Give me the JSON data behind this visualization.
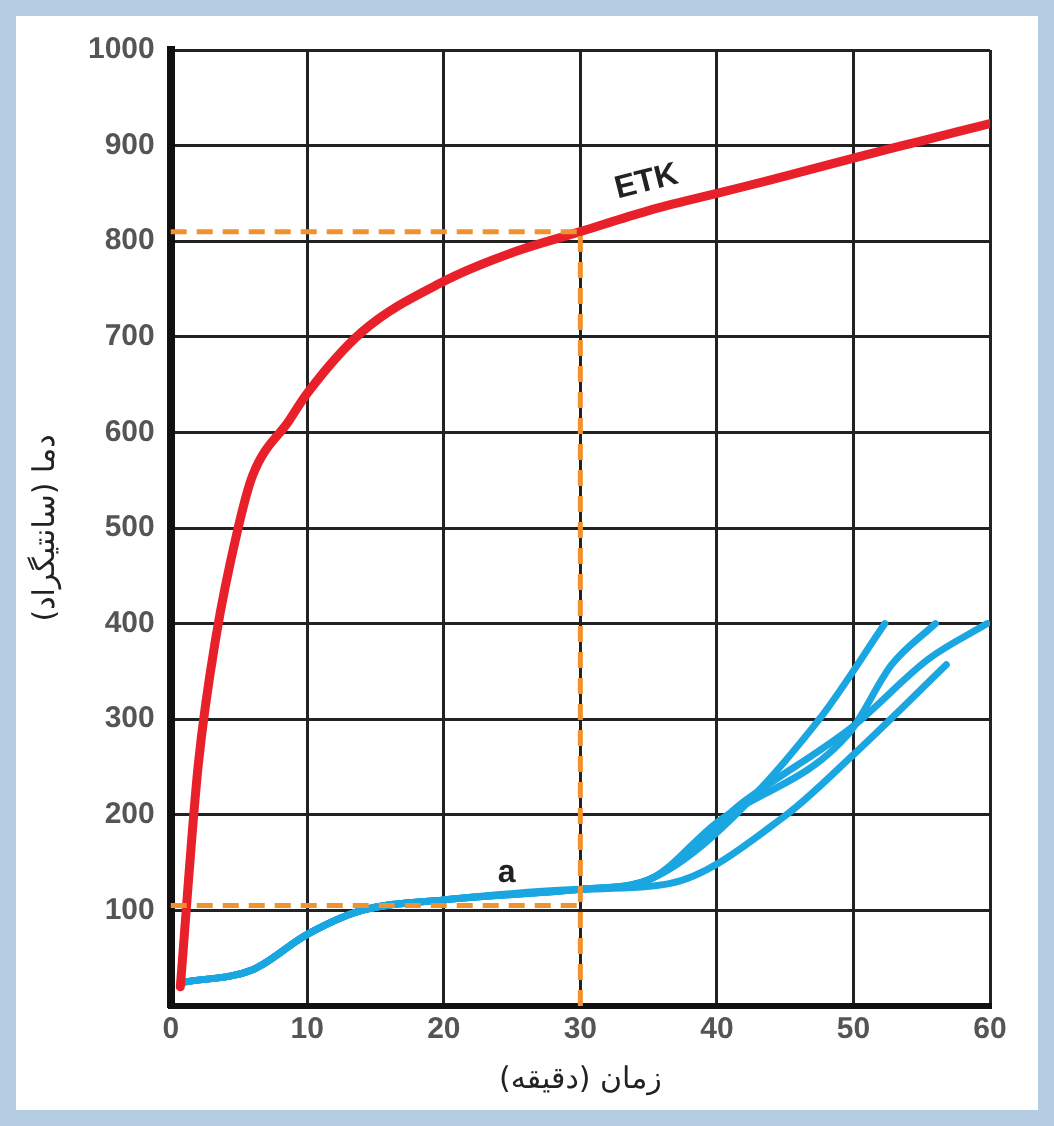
{
  "chart_data": {
    "type": "line",
    "xlabel": "زمان (دقیقه)",
    "ylabel": "دما (سانتیگراد)",
    "xlim": [
      0,
      60
    ],
    "xticks": [
      0,
      10,
      20,
      30,
      40,
      50,
      60
    ],
    "ylim": [
      0,
      1000
    ],
    "yticks": [
      100,
      200,
      300,
      400,
      500,
      600,
      700,
      800,
      900,
      1000
    ],
    "grid": true,
    "legend": false,
    "marker": "none",
    "line_style": "solid",
    "series": [
      {
        "name": "ETK",
        "color": "#e8202a",
        "x": [
          0.7,
          2,
          3.3,
          4.9,
          6,
          8.7,
          10,
          14,
          20,
          25,
          30,
          35,
          40,
          45,
          50,
          55,
          60
        ],
        "values": [
          20,
          250,
          385,
          498,
          555,
          613,
          641,
          705,
          758,
          788,
          810,
          832,
          850,
          868,
          887,
          905,
          923
        ]
      },
      {
        "color": "#1aa6e0",
        "x": [
          1,
          6,
          10,
          14,
          20,
          30,
          35,
          39.5,
          47.5,
          52.3
        ],
        "values": [
          25,
          38,
          75,
          100,
          111,
          122,
          132,
          175,
          300,
          400
        ]
      },
      {
        "color": "#1aa6e0",
        "x": [
          1,
          6,
          10,
          14,
          20,
          30,
          35,
          40,
          49.6,
          52.8,
          56
        ],
        "values": [
          25,
          38,
          75,
          100,
          111,
          122,
          132,
          192,
          284,
          357,
          400
        ]
      },
      {
        "color": "#1aa6e0",
        "x": [
          1,
          6,
          10,
          14,
          20,
          30,
          35,
          42,
          50,
          55.5,
          59.8
        ],
        "values": [
          25,
          38,
          75,
          100,
          111,
          122,
          132,
          214,
          293,
          363,
          400
        ]
      },
      {
        "color": "#1aa6e0",
        "x": [
          1,
          6,
          10,
          14,
          20,
          30,
          36.5,
          45,
          50,
          56.8
        ],
        "values": [
          25,
          38,
          75,
          100,
          111,
          122,
          128,
          199,
          263,
          357
        ]
      }
    ],
    "ref_lines": [
      {
        "axis": "y",
        "value": 810,
        "color": "#f0922e",
        "line_style": "dashed"
      },
      {
        "axis": "y",
        "value": 105,
        "color": "#f0922e",
        "line_style": "dashed"
      },
      {
        "axis": "x",
        "value": 30,
        "color": "#f0922e",
        "line_style": "dashed"
      }
    ],
    "annotations": [
      "a"
    ]
  }
}
